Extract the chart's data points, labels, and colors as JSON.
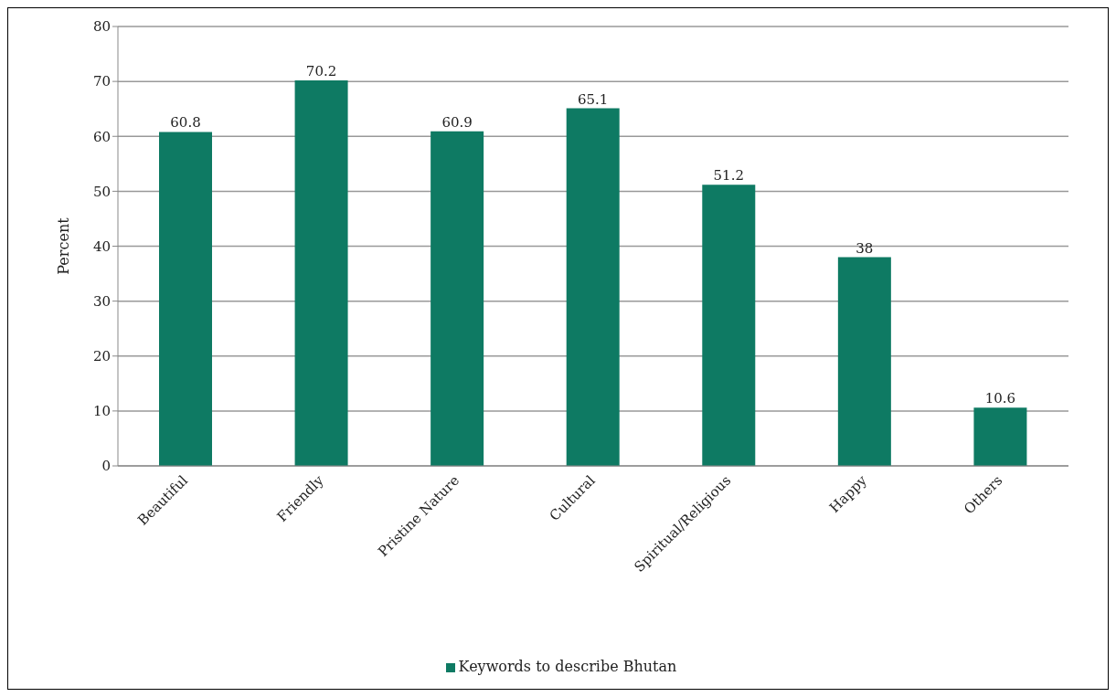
{
  "chart_data": {
    "type": "bar",
    "ylabel": "Percent",
    "categories": [
      "Beautiful",
      "Friendly",
      "Pristine Nature",
      "Cultural",
      "Spiritual/Religious",
      "Happy",
      "Others"
    ],
    "series": [
      {
        "name": "Keywords to describe Bhutan",
        "color": "#0e7a63",
        "values": [
          60.8,
          70.2,
          60.9,
          65.1,
          51.2,
          38,
          10.6
        ]
      }
    ],
    "ylim": [
      0,
      80
    ],
    "yticks": [
      0,
      10,
      20,
      30,
      40,
      50,
      60,
      70,
      80
    ],
    "grid": "y",
    "legend": "bottom",
    "data_labels": true
  }
}
